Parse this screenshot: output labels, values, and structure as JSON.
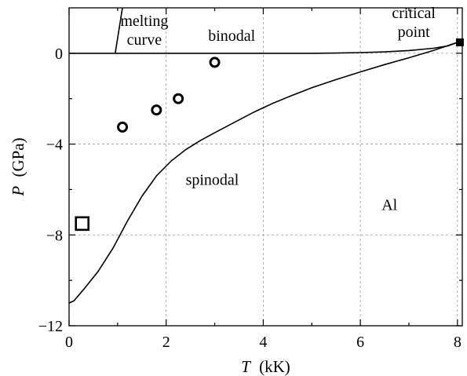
{
  "chart_data": {
    "type": "line",
    "xlabel": {
      "var": "T",
      "unit": "(kK)"
    },
    "ylabel": {
      "var": "P",
      "unit": "(GPa)"
    },
    "xlim": [
      0,
      8.1
    ],
    "ylim": [
      -12,
      2
    ],
    "x_ticks": [
      0,
      2,
      4,
      6,
      8
    ],
    "y_ticks": [
      -12,
      -8,
      -4,
      0
    ],
    "grid": true,
    "series": [
      {
        "name": "melting curve",
        "style": "line",
        "x": [
          0.95,
          1.1
        ],
        "y": [
          0,
          2.0
        ]
      },
      {
        "name": "binodal",
        "style": "line",
        "x": [
          0,
          1,
          2,
          3,
          4,
          5,
          5.5,
          6,
          6.5,
          7,
          7.5,
          7.8,
          8.0
        ],
        "y": [
          0,
          0,
          0,
          0,
          0,
          0,
          0.01,
          0.03,
          0.06,
          0.12,
          0.22,
          0.32,
          0.48
        ]
      },
      {
        "name": "spinodal",
        "style": "line",
        "x": [
          -0.05,
          0.1,
          0.3,
          0.6,
          0.9,
          1.2,
          1.5,
          1.8,
          2.1,
          2.4,
          2.7,
          3.0,
          3.4,
          3.8,
          4.2,
          4.6,
          5.0,
          5.5,
          6.0,
          6.5,
          7.0,
          7.5,
          8.0
        ],
        "y": [
          -11.05,
          -10.9,
          -10.4,
          -9.6,
          -8.6,
          -7.4,
          -6.3,
          -5.4,
          -4.75,
          -4.25,
          -3.85,
          -3.5,
          -3.05,
          -2.6,
          -2.2,
          -1.85,
          -1.52,
          -1.16,
          -0.82,
          -0.5,
          -0.2,
          0.12,
          0.48
        ]
      },
      {
        "name": "circles",
        "style": "open-circle",
        "x": [
          1.1,
          1.8,
          2.25,
          3.0
        ],
        "y": [
          -3.25,
          -2.5,
          -2.0,
          -0.4
        ]
      },
      {
        "name": "square",
        "style": "open-square",
        "x": [
          0.27
        ],
        "y": [
          -7.5
        ]
      },
      {
        "name": "critical point",
        "style": "filled-square",
        "x": [
          8.05
        ],
        "y": [
          0.48
        ]
      }
    ],
    "annotations": [
      {
        "lines": [
          "melting",
          "curve"
        ],
        "x": 1.55,
        "y": 1.2
      },
      {
        "lines": [
          "binodal"
        ],
        "x": 3.35,
        "y": 0.55
      },
      {
        "lines": [
          "critical",
          "point"
        ],
        "x": 7.1,
        "y": 1.55
      },
      {
        "lines": [
          "spinodal"
        ],
        "x": 2.95,
        "y": -5.8
      },
      {
        "lines": [
          "Al"
        ],
        "x": 6.6,
        "y": -6.9
      }
    ]
  }
}
